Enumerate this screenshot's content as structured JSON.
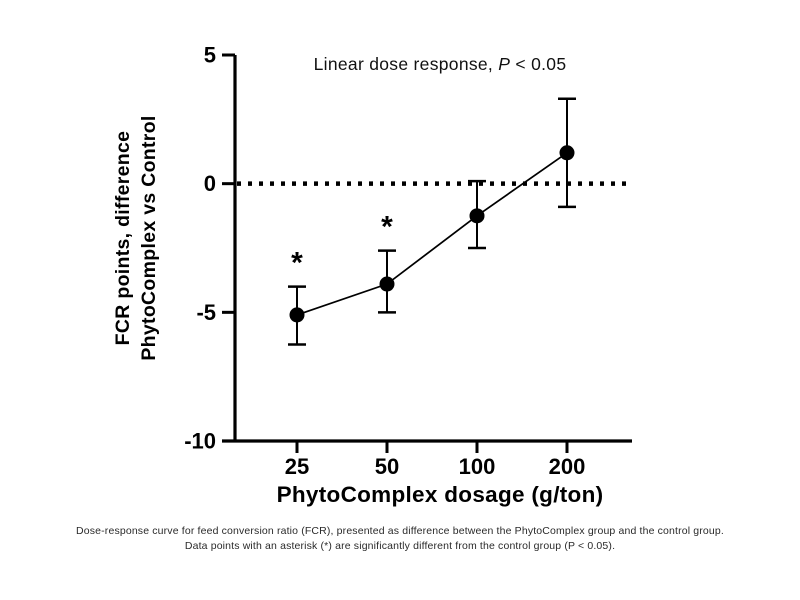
{
  "figure": {
    "annotation": {
      "prefix": "Linear dose response, ",
      "p_symbol": "P",
      "suffix": " < 0.05"
    },
    "caption": {
      "line1": "Dose-response curve for feed conversion ratio (FCR), presented as difference between the PhytoComplex group and the control group.",
      "line2": "Data points with an asterisk (*) are significantly different from the control group (P < 0.05)."
    }
  },
  "chart_data": {
    "type": "line",
    "title": "Linear dose response, P < 0.05",
    "xlabel": "PhytoComplex dosage (g/ton)",
    "ylabel": "FCR points, difference\nPhytoComplex vs Control",
    "categories": [
      "25",
      "50",
      "100",
      "200"
    ],
    "yticks": [
      5,
      0,
      -5,
      -10
    ],
    "ylim": [
      -10,
      5
    ],
    "grid": false,
    "legend_position": "none",
    "zero_reference_line": {
      "y": 0,
      "style": "dotted"
    },
    "significance_marker": "*",
    "series": [
      {
        "name": "FCR difference, PhytoComplex vs Control",
        "values": [
          -5.1,
          -3.9,
          -1.25,
          1.2
        ],
        "error_upper": [
          -4.0,
          -2.6,
          0.1,
          3.3
        ],
        "error_lower": [
          -6.25,
          -5.0,
          -2.5,
          -0.9
        ],
        "significant": [
          true,
          true,
          false,
          false
        ]
      }
    ],
    "colors": {
      "line": "#000000",
      "marker": "#000000",
      "text": "#000000",
      "background": "#ffffff"
    }
  }
}
